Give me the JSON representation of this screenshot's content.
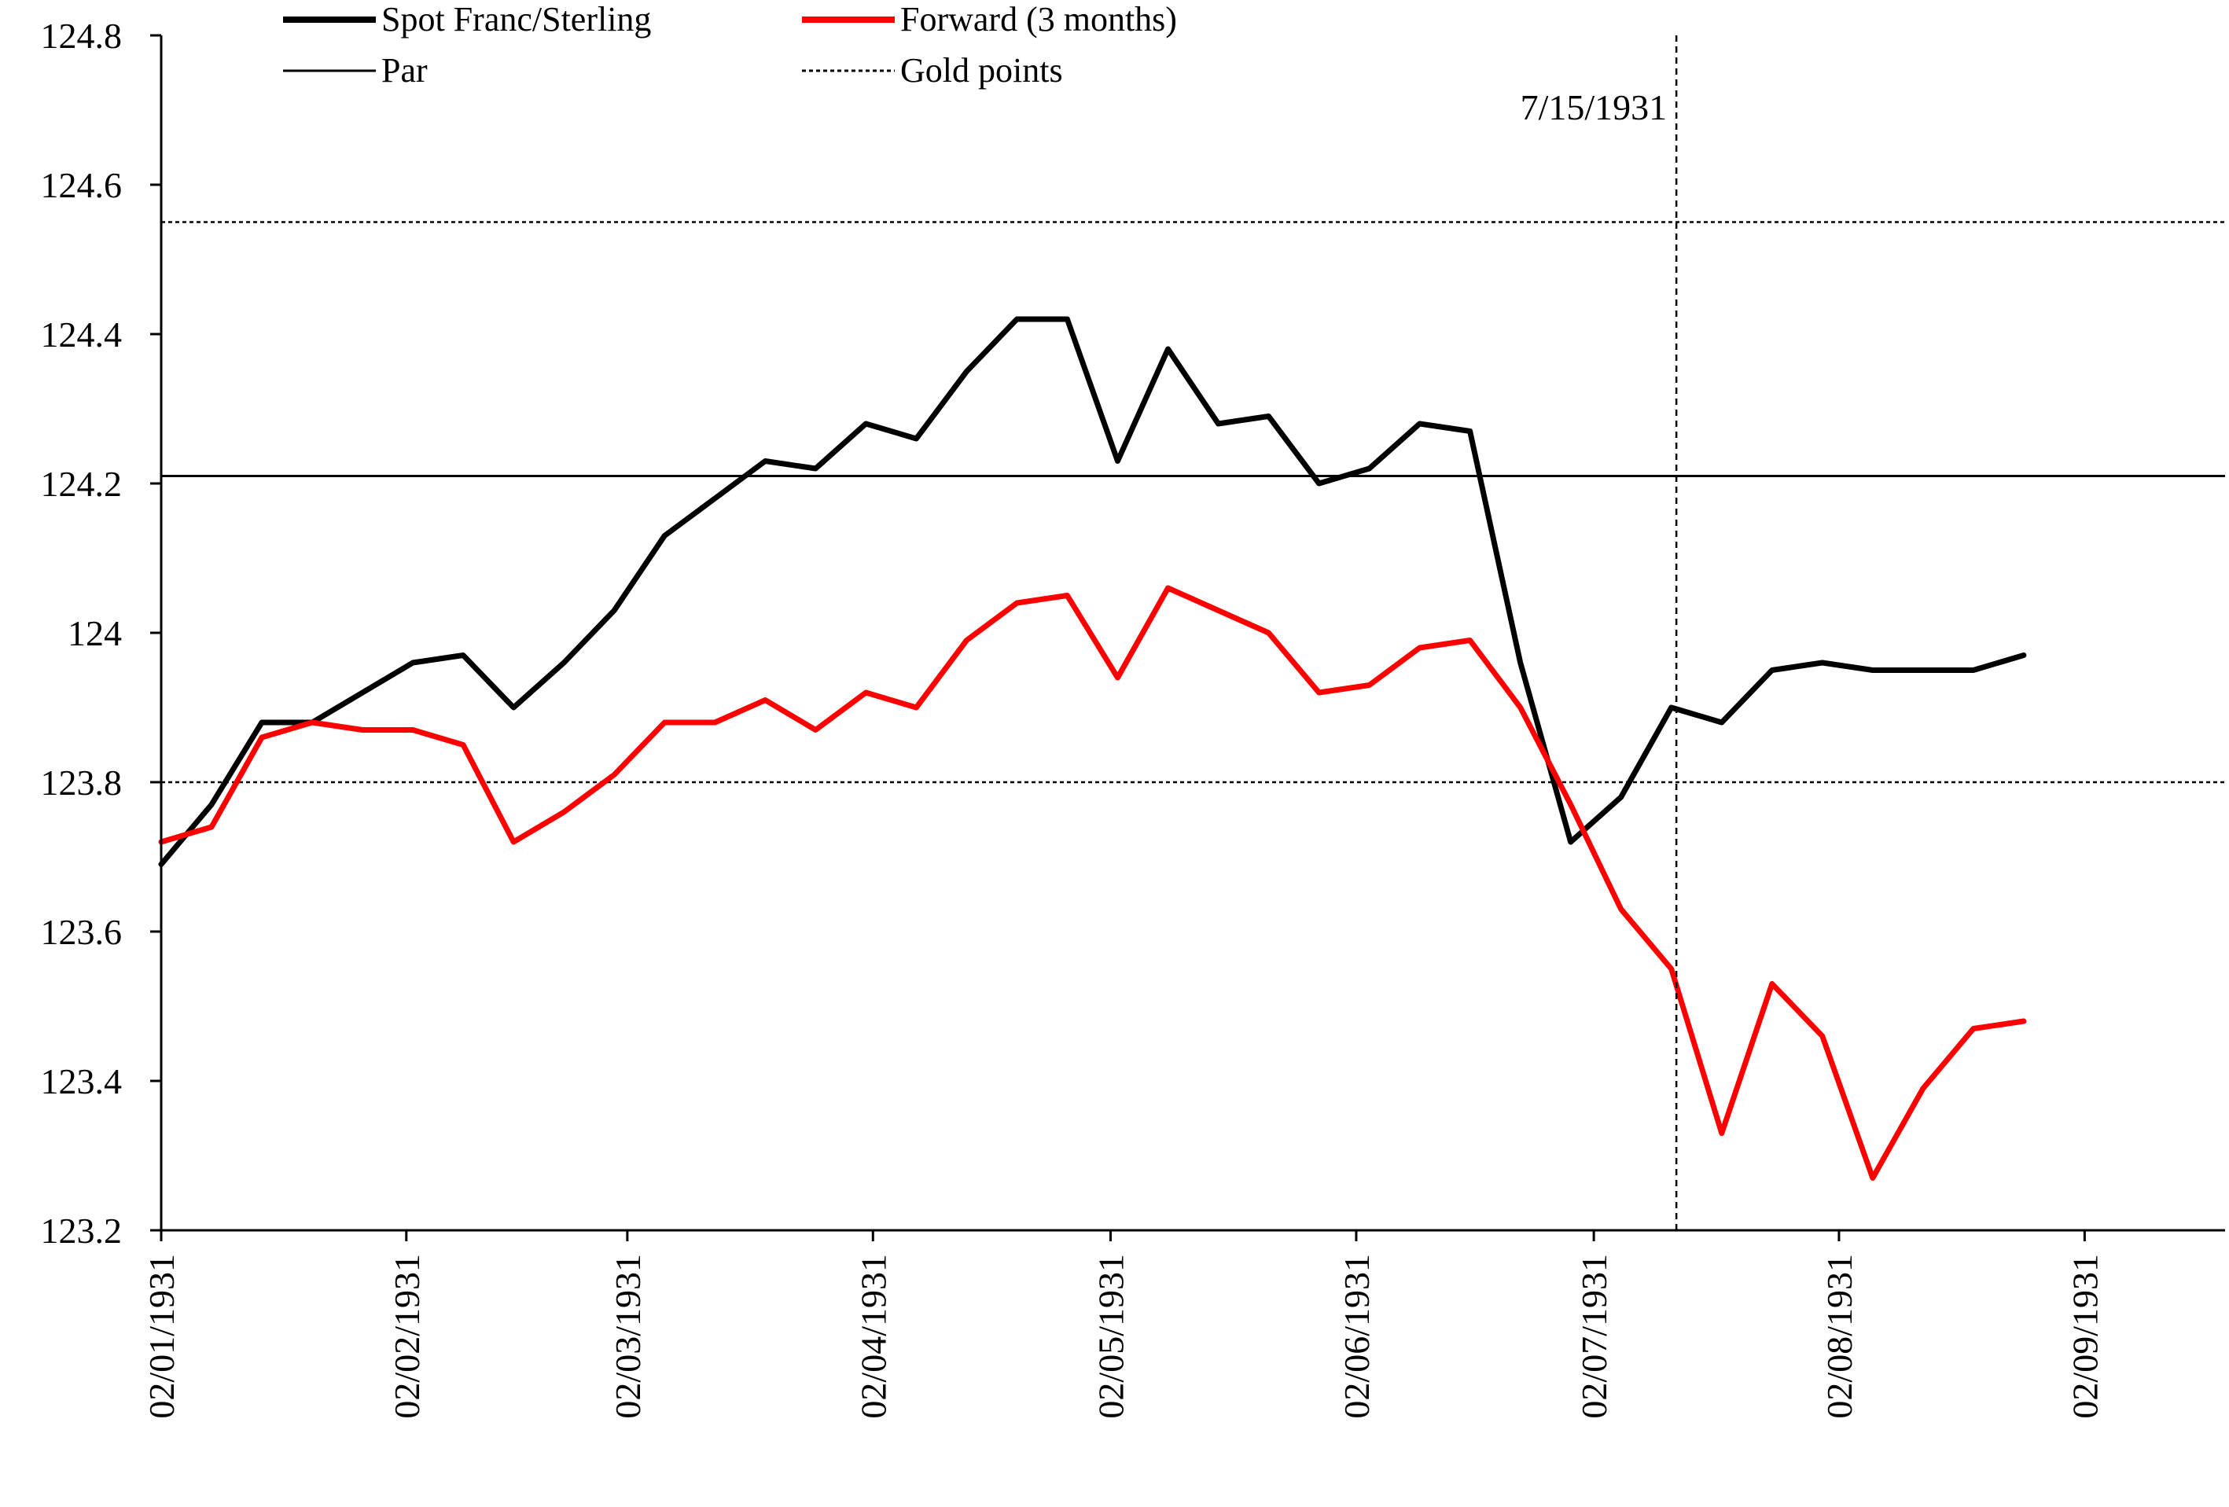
{
  "chart_data": {
    "type": "line",
    "title": "",
    "xlabel": "",
    "ylabel": "",
    "ylim": [
      123.2,
      124.8
    ],
    "yticks": [
      "123.2",
      "123.4",
      "123.6",
      "123.8",
      "124",
      "124.2",
      "124.4",
      "124.6",
      "124.8"
    ],
    "x_index_range": [
      0,
      41
    ],
    "xticks": [
      {
        "label": "02/01/1931",
        "index": 0
      },
      {
        "label": "02/02/1931",
        "index": 4.87
      },
      {
        "label": "02/03/1931",
        "index": 9.26
      },
      {
        "label": "02/04/1931",
        "index": 14.14
      },
      {
        "label": "02/05/1931",
        "index": 18.86
      },
      {
        "label": "02/06/1931",
        "index": 23.74
      },
      {
        "label": "02/07/1931",
        "index": 28.46
      },
      {
        "label": "02/08/1931",
        "index": 33.33
      },
      {
        "label": "02/09/1931",
        "index": 38.21
      }
    ],
    "series": [
      {
        "name": "Spot Franc/Sterling",
        "color": "#000000",
        "style": "thick",
        "values": [
          123.69,
          123.77,
          123.88,
          123.88,
          123.92,
          123.96,
          123.97,
          123.9,
          123.96,
          124.03,
          124.13,
          124.18,
          124.23,
          124.22,
          124.28,
          124.26,
          124.35,
          124.42,
          124.42,
          124.23,
          124.38,
          124.28,
          124.29,
          124.2,
          124.22,
          124.28,
          124.27,
          123.96,
          123.72,
          123.78,
          123.9,
          123.88,
          123.95,
          123.96,
          123.95,
          123.95,
          123.95,
          123.97
        ]
      },
      {
        "name": "Forward (3 months)",
        "color": "#ff0000",
        "style": "thick",
        "values": [
          123.72,
          123.74,
          123.86,
          123.88,
          123.87,
          123.87,
          123.85,
          123.72,
          123.76,
          123.81,
          123.88,
          123.88,
          123.91,
          123.87,
          123.92,
          123.9,
          123.99,
          124.04,
          124.05,
          123.94,
          124.06,
          124.03,
          124.0,
          123.92,
          123.93,
          123.98,
          123.99,
          123.9,
          123.77,
          123.63,
          123.55,
          123.33,
          123.53,
          123.46,
          123.27,
          123.39,
          123.47,
          123.48
        ]
      },
      {
        "name": "Par",
        "color": "#000000",
        "style": "thin",
        "y": 124.21
      },
      {
        "name": "Gold points",
        "color": "#000000",
        "style": "dotted",
        "y_values": [
          124.55,
          123.8
        ]
      }
    ],
    "annotations": [
      {
        "label": "7/15/1931",
        "type": "vertical-dashed-line",
        "x_index": 30.1
      }
    ],
    "legend_position": "top",
    "grid": false
  }
}
